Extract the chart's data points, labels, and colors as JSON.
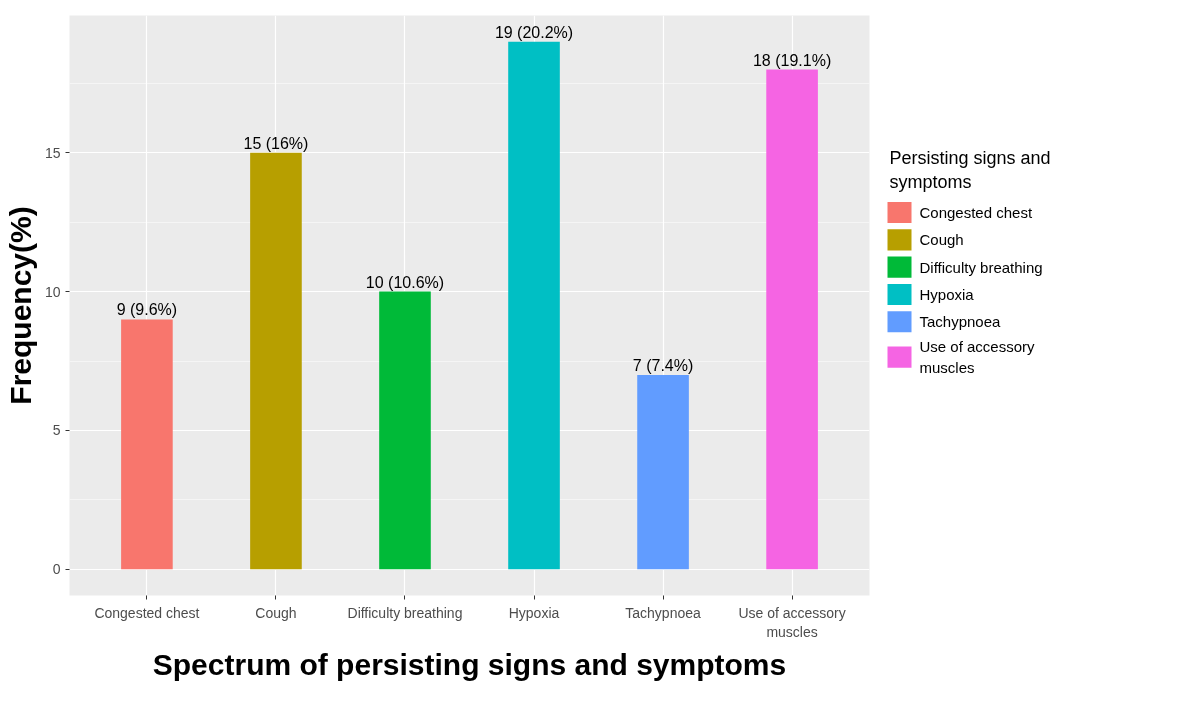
{
  "chart_data": {
    "type": "bar",
    "xlabel": "Spectrum of persisting signs and symptoms",
    "ylabel": "Frequency(%)",
    "legend_title": "Persisting signs and\nsymptoms",
    "categories": [
      "Congested chest",
      "Cough",
      "Difficulty breathing",
      "Hypoxia",
      "Tachypnoea",
      "Use of accessory\nmuscles"
    ],
    "series": [
      {
        "name": "Congested chest",
        "color": "#f8766d",
        "values": [
          9,
          null,
          null,
          null,
          null,
          null
        ],
        "value_labels": [
          "9 (9.6%)",
          null,
          null,
          null,
          null,
          null
        ]
      },
      {
        "name": "Cough",
        "color": "#b79f00",
        "values": [
          null,
          15,
          null,
          null,
          null,
          null
        ],
        "value_labels": [
          null,
          "15 (16%)",
          null,
          null,
          null,
          null
        ]
      },
      {
        "name": "Difficulty breathing",
        "color": "#00ba38",
        "values": [
          null,
          null,
          10,
          null,
          null,
          null
        ],
        "value_labels": [
          null,
          null,
          "10 (10.6%)",
          null,
          null,
          null
        ]
      },
      {
        "name": "Hypoxia",
        "color": "#00bfc4",
        "values": [
          null,
          null,
          null,
          19,
          null,
          null
        ],
        "value_labels": [
          null,
          null,
          null,
          "19 (20.2%)",
          null,
          null
        ]
      },
      {
        "name": "Tachypnoea",
        "color": "#619cff",
        "values": [
          null,
          null,
          null,
          null,
          7,
          null
        ],
        "value_labels": [
          null,
          null,
          null,
          null,
          "7 (7.4%)",
          null
        ]
      },
      {
        "name": "Use of accessory\nmuscles",
        "color": "#f564e3",
        "values": [
          null,
          null,
          null,
          null,
          null,
          18
        ],
        "value_labels": [
          null,
          null,
          null,
          null,
          null,
          "18 (19.1%)"
        ]
      }
    ],
    "ylim": [
      -0.95,
      19.95
    ],
    "yticks": [
      0,
      5,
      10,
      15
    ],
    "grid": true,
    "legend": "right"
  }
}
